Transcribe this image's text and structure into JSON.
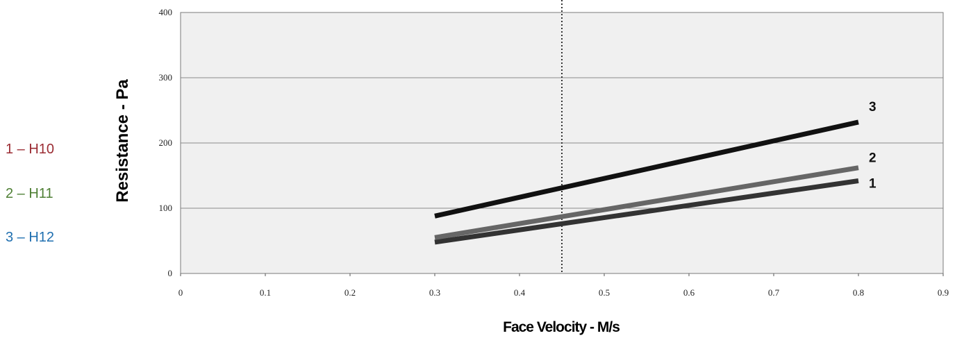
{
  "legend": [
    {
      "label": "1 – H10",
      "color": "#9b2c33"
    },
    {
      "label": "2 – H11",
      "color": "#4e7f34"
    },
    {
      "label": "3 – H12",
      "color": "#1f6fb0"
    }
  ],
  "chart_data": {
    "type": "line",
    "title": "",
    "xlabel": "Face Velocity - M/s",
    "ylabel": "Resistance - Pa",
    "xlim": [
      0,
      0.9
    ],
    "ylim": [
      0,
      400
    ],
    "x_ticks": [
      "0",
      "0.1",
      "0.2",
      "0.3",
      "0.4",
      "0.5",
      "0.6",
      "0.7",
      "0.8",
      "0.9"
    ],
    "y_ticks": [
      "0",
      "100",
      "200",
      "300",
      "400"
    ],
    "grid": "horizontal",
    "reference_line_x": 0.45,
    "series": [
      {
        "name": "1",
        "x": [
          0.3,
          0.8
        ],
        "y": [
          48,
          142
        ],
        "color": "#333333"
      },
      {
        "name": "2",
        "x": [
          0.3,
          0.8
        ],
        "y": [
          55,
          162
        ],
        "color": "#666666"
      },
      {
        "name": "3",
        "x": [
          0.3,
          0.8
        ],
        "y": [
          88,
          232
        ],
        "color": "#111111"
      }
    ]
  }
}
